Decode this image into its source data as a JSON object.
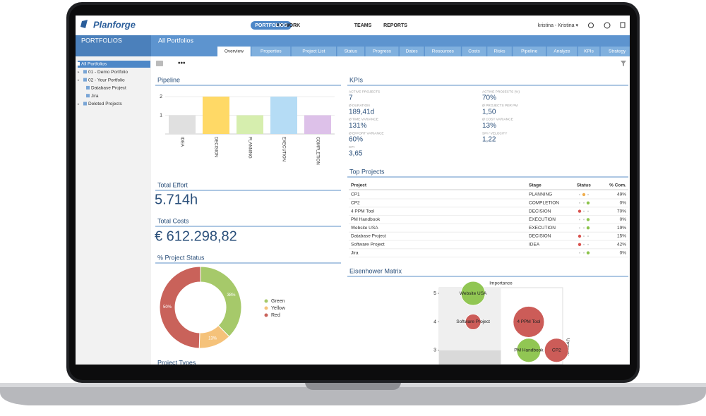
{
  "app": {
    "logo": "Planforge",
    "nav": [
      "MY WORK",
      "PORTFOLIOS",
      "TEAMS",
      "REPORTS"
    ],
    "user": "kristina - Kristina ▾"
  },
  "sidebar": {
    "title": "PORTFOLIOS",
    "tree": [
      "All Portfolios",
      "01 - Demo Portfolio",
      "02 - Your Portfolio",
      "Database Project",
      "Jira",
      "Deleted Projects"
    ]
  },
  "header": {
    "title": "All Portfolios",
    "tabs": [
      "Overview",
      "Properties",
      "Project List",
      "Status",
      "Progress",
      "Dates",
      "Resources",
      "Costs",
      "Risks",
      "Pipeline",
      "Analyze",
      "KPIs",
      "Strategy"
    ]
  },
  "pipeline": {
    "type": "bar",
    "title": "Pipeline",
    "categories": [
      "IDEA",
      "DECISION",
      "PLANNING",
      "EXECUTION",
      "COMPLETION"
    ],
    "values": [
      1,
      2,
      1,
      2,
      1
    ],
    "colors": [
      "#e0e0e0",
      "#ffd966",
      "#d6eeae",
      "#b5dcf5",
      "#ddc1e9"
    ],
    "ylim": [
      0,
      2
    ],
    "yticks": [
      1,
      2
    ]
  },
  "kpis": {
    "title": "KPIs",
    "items": [
      {
        "label": "ACTIVE PROJECTS",
        "value": "7"
      },
      {
        "label": "ACTIVE PROJECTS (%)",
        "value": "70%"
      },
      {
        "label": "Ø DURATION",
        "value": "189,41d"
      },
      {
        "label": "Ø PROJECTS PER PM",
        "value": "1,50"
      },
      {
        "label": "Ø TIME VARIANCE",
        "value": "131%"
      },
      {
        "label": "Ø COST VARIANCE",
        "value": "13%"
      },
      {
        "label": "Ø EFFORT VARIANCE",
        "value": "60%"
      },
      {
        "label": "SPI / VELOCITY",
        "value": "1,22"
      },
      {
        "label": "CPI",
        "value": "3,65"
      }
    ]
  },
  "total_effort": {
    "title": "Total Effort",
    "value": "5.714h"
  },
  "total_costs": {
    "title": "Total Costs",
    "value": "€ 612.298,82"
  },
  "project_status": {
    "type": "pie",
    "title": "% Project Status",
    "categories": [
      "Green",
      "Yellow",
      "Red"
    ],
    "values": [
      38,
      13,
      50
    ],
    "value_labels": [
      "38%",
      "13%",
      "50%"
    ],
    "colors": [
      "#a6c96a",
      "#f5c27a",
      "#c9625a"
    ]
  },
  "project_types": {
    "title": "Project Types"
  },
  "top_projects": {
    "title": "Top Projects",
    "columns": [
      "Project",
      "Stage",
      "Status",
      "% Com."
    ],
    "rows": [
      [
        "CP1",
        "PLANNING",
        "49%"
      ],
      [
        "CP2",
        "COMPLETION",
        "0%"
      ],
      [
        "4 PPM Tool",
        "DECISION",
        "70%"
      ],
      [
        "PM Handbook",
        "EXECUTION",
        "0%"
      ],
      [
        "Website USA",
        "EXECUTION",
        "19%"
      ],
      [
        "Database Project",
        "DECISION",
        "15%"
      ],
      [
        "Software Project",
        "IDEA",
        "42%"
      ],
      [
        "Jira",
        null,
        "0%"
      ]
    ],
    "status_colors": [
      "#d9534f",
      "#f0ad4e",
      "#8bc34a"
    ],
    "row_status": [
      "#f0ad4e",
      "#8bc34a",
      "#d9534f",
      "#8bc34a",
      "#8bc34a",
      "#d9534f",
      "#d9534f",
      "#8bc34a"
    ]
  },
  "eisenhower": {
    "type": "scatter",
    "title": "Eisenhower Matrix",
    "ylabel": "Importance",
    "xlabel": "Urgency",
    "series": [
      {
        "name": "Website USA",
        "x": 2.1,
        "y": 5,
        "size": 17,
        "color": "#8bc34a"
      },
      {
        "name": "Software Project",
        "x": 2.1,
        "y": 4,
        "size": 11,
        "color": "#c9534f"
      },
      {
        "name": "4 PPM Tool",
        "x": 3.9,
        "y": 4,
        "size": 22,
        "color": "#c9534f"
      },
      {
        "name": "PM Handbook",
        "x": 3.9,
        "y": 3,
        "size": 17,
        "color": "#8bc34a"
      },
      {
        "name": "CP2",
        "x": 4.8,
        "y": 3,
        "size": 17,
        "color": "#c9534f"
      }
    ],
    "xlim": [
      1,
      5
    ],
    "ylim": [
      2.5,
      5.2
    ],
    "yticks": [
      3,
      4,
      5
    ]
  }
}
